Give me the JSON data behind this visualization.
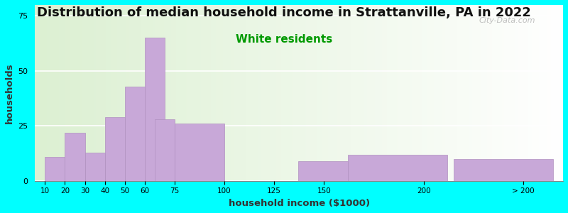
{
  "title": "Distribution of median household income in Strattanville, PA in 2022",
  "subtitle": "White residents",
  "xlabel": "household income ($1000)",
  "ylabel": "households",
  "background_outer": "#00FFFF",
  "bar_color": "#C8A8D8",
  "bar_edge_color": "#B090C0",
  "categories": [
    "10",
    "20",
    "30",
    "40",
    "50",
    "60",
    "75",
    "100",
    "125",
    "150",
    "200",
    "> 200"
  ],
  "values": [
    11,
    22,
    13,
    29,
    43,
    65,
    28,
    26,
    0,
    9,
    12,
    10
  ],
  "bar_left_edges": [
    10,
    20,
    30,
    40,
    50,
    60,
    65,
    75,
    100,
    137,
    162,
    215
  ],
  "bar_widths": [
    10,
    10,
    10,
    10,
    10,
    10,
    10,
    25,
    0,
    25,
    50,
    50
  ],
  "yticks": [
    0,
    25,
    50,
    75
  ],
  "ylim": [
    0,
    80
  ],
  "xlim": [
    5,
    270
  ],
  "title_fontsize": 13,
  "subtitle_fontsize": 11,
  "subtitle_color": "#009900",
  "watermark": "City-Data.com",
  "tick_label_positions": [
    10,
    20,
    30,
    40,
    50,
    60,
    75,
    100,
    125,
    150,
    200,
    250
  ],
  "tick_labels": [
    "10",
    "20",
    "30",
    "40",
    "50",
    "60",
    "75",
    "100",
    "125",
    "150",
    "200",
    "> 200"
  ]
}
